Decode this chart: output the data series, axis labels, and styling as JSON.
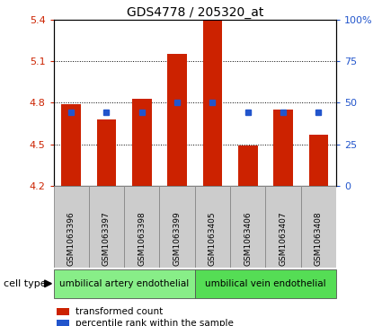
{
  "title": "GDS4778 / 205320_at",
  "samples": [
    "GSM1063396",
    "GSM1063397",
    "GSM1063398",
    "GSM1063399",
    "GSM1063405",
    "GSM1063406",
    "GSM1063407",
    "GSM1063408"
  ],
  "bar_values": [
    4.79,
    4.68,
    4.83,
    5.15,
    5.4,
    4.49,
    4.75,
    4.57
  ],
  "dot_values": [
    4.73,
    4.73,
    4.73,
    4.8,
    4.8,
    4.73,
    4.73,
    4.73
  ],
  "bar_bottom": 4.2,
  "ylim_left": [
    4.2,
    5.4
  ],
  "ylim_right": [
    0,
    100
  ],
  "yticks_left": [
    4.2,
    4.5,
    4.8,
    5.1,
    5.4
  ],
  "yticks_right": [
    0,
    25,
    50,
    75,
    100
  ],
  "ytick_labels_right": [
    "0",
    "25",
    "50",
    "75",
    "100%"
  ],
  "bar_color": "#cc2200",
  "dot_color": "#2255cc",
  "bar_width": 0.55,
  "groups": [
    {
      "label": "umbilical artery endothelial",
      "indices": [
        0,
        1,
        2,
        3
      ],
      "color": "#88ee88"
    },
    {
      "label": "umbilical vein endothelial",
      "indices": [
        4,
        5,
        6,
        7
      ],
      "color": "#55dd55"
    }
  ],
  "cell_type_label": "cell type",
  "legend_bar_label": "transformed count",
  "legend_dot_label": "percentile rank within the sample",
  "sample_box_color": "#cccccc",
  "plot_bg": "#ffffff",
  "grid_color": "#000000"
}
